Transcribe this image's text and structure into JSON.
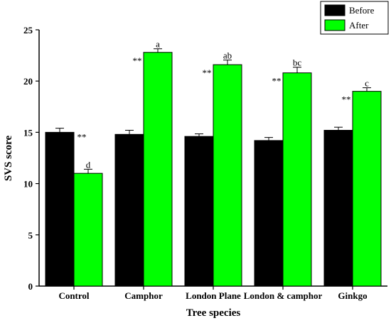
{
  "chart_data": {
    "type": "bar",
    "xlabel": "Tree species",
    "ylabel": "SVS score",
    "ylim": [
      0,
      25
    ],
    "yticks": [
      0,
      5,
      10,
      15,
      20,
      25
    ],
    "categories": [
      "Control",
      "Camphor",
      "London Plane",
      "London & camphor",
      "Ginkgo"
    ],
    "series": [
      {
        "name": "Before",
        "color": "#000000",
        "values": [
          15.0,
          14.8,
          14.6,
          14.2,
          15.2
        ],
        "errors": [
          0.4,
          0.4,
          0.25,
          0.3,
          0.3
        ]
      },
      {
        "name": "After",
        "color": "#00ff00",
        "values": [
          11.0,
          22.8,
          21.6,
          20.8,
          19.0
        ],
        "errors": [
          0.4,
          0.35,
          0.45,
          0.55,
          0.35
        ]
      }
    ],
    "significance_marks": [
      "**",
      "**",
      "**",
      "**",
      "**"
    ],
    "letter_labels": [
      "d",
      "a",
      "ab",
      "bc",
      "c"
    ],
    "legend": "top-right",
    "grid": false
  }
}
